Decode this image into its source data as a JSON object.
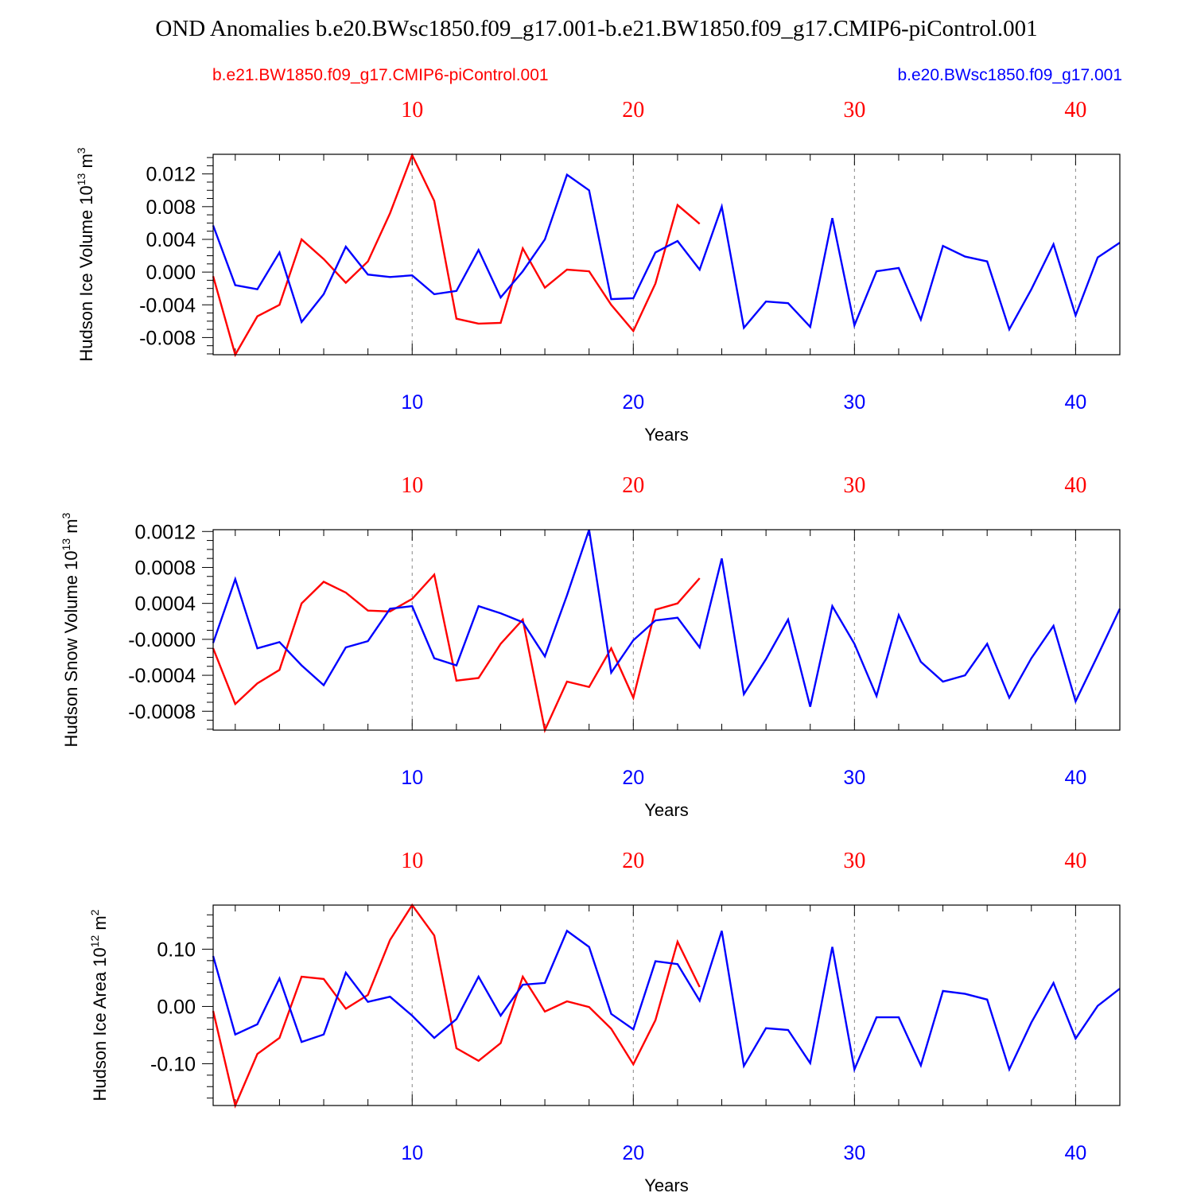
{
  "title": "OND Anomalies b.e20.BWsc1850.f09_g17.001-b.e21.BW1850.f09_g17.CMIP6-piControl.001",
  "colors": {
    "red": "#ff0000",
    "blue": "#0000ff",
    "axis": "#000000",
    "grid": "#888888"
  },
  "legend": {
    "red_label": "b.e21.BW1850.f09_g17.CMIP6-piControl.001",
    "blue_label": "b.e20.BWsc1850.f09_g17.001"
  },
  "chart_data": [
    {
      "type": "line",
      "xlabel": "Years",
      "ylabel": "Hudson Ice Volume 10",
      "ylabel_exp": "13",
      "ylabel_unit": " m",
      "ylabel_unit_exp": "3",
      "xlim": [
        1,
        42
      ],
      "ylim": [
        -0.0101,
        0.0144
      ],
      "yticks": [
        -0.008,
        -0.004,
        0.0,
        0.004,
        0.008,
        0.012
      ],
      "ytick_labels": [
        "-0.008",
        "-0.004",
        "0.000",
        "0.004",
        "0.008",
        "0.012"
      ],
      "yminor_step": 0.001,
      "xticks": [
        10,
        20,
        30,
        40
      ],
      "xtick_labels": [
        "10",
        "20",
        "30",
        "40"
      ],
      "series": [
        {
          "name": "b.e21.BW1850.f09_g17.CMIP6-piControl.001",
          "color": "red",
          "x": [
            1,
            2,
            3,
            4,
            5,
            6,
            7,
            8,
            9,
            10,
            11,
            12,
            13,
            14,
            15,
            16,
            17,
            18,
            19,
            20,
            21,
            22,
            23
          ],
          "values": [
            -0.0005,
            -0.0101,
            -0.0054,
            -0.004,
            0.004,
            0.0016,
            -0.0013,
            0.0013,
            0.0072,
            0.0143,
            0.0087,
            -0.0057,
            -0.0063,
            -0.0062,
            0.0029,
            -0.0019,
            0.0003,
            0.0001,
            -0.004,
            -0.0072,
            -0.0014,
            0.0082,
            0.0059
          ]
        },
        {
          "name": "b.e20.BWsc1850.f09_g17.001",
          "color": "blue",
          "x": [
            1,
            2,
            3,
            4,
            5,
            6,
            7,
            8,
            9,
            10,
            11,
            12,
            13,
            14,
            15,
            16,
            17,
            18,
            19,
            20,
            21,
            22,
            23,
            24,
            25,
            26,
            27,
            28,
            29,
            30,
            31,
            32,
            33,
            34,
            35,
            36,
            37,
            38,
            39,
            40,
            41,
            42
          ],
          "values": [
            0.0057,
            -0.0016,
            -0.0021,
            0.0024,
            -0.0061,
            -0.0027,
            0.0031,
            -0.0003,
            -0.0006,
            -0.0004,
            -0.0027,
            -0.0023,
            0.0027,
            -0.0031,
            0.0001,
            0.004,
            0.0119,
            0.01,
            -0.0033,
            -0.0032,
            0.0024,
            0.0038,
            0.0003,
            0.008,
            -0.0068,
            -0.0036,
            -0.0038,
            -0.0067,
            0.0066,
            -0.0065,
            0.0001,
            0.0005,
            -0.0058,
            0.0032,
            0.0019,
            0.0013,
            -0.007,
            -0.0021,
            0.0034,
            -0.0053,
            0.0018,
            0.0036
          ]
        }
      ]
    },
    {
      "type": "line",
      "xlabel": "Years",
      "ylabel": "Hudson Snow Volume 10",
      "ylabel_exp": "13",
      "ylabel_unit": " m",
      "ylabel_unit_exp": "3",
      "xlim": [
        1,
        42
      ],
      "ylim": [
        -0.00101,
        0.00122
      ],
      "yticks": [
        -0.0008,
        -0.0004,
        0.0,
        0.0004,
        0.0008,
        0.0012
      ],
      "ytick_labels": [
        "-0.0008",
        "-0.0004",
        "-0.0000",
        "0.0004",
        "0.0008",
        "0.0012"
      ],
      "yminor_step": 0.0001,
      "xticks": [
        10,
        20,
        30,
        40
      ],
      "xtick_labels": [
        "10",
        "20",
        "30",
        "40"
      ],
      "series": [
        {
          "name": "b.e21.BW1850.f09_g17.CMIP6-piControl.001",
          "color": "red",
          "x": [
            1,
            2,
            3,
            4,
            5,
            6,
            7,
            8,
            9,
            10,
            11,
            12,
            13,
            14,
            15,
            16,
            17,
            18,
            19,
            20,
            21,
            22,
            23
          ],
          "values": [
            -0.0001,
            -0.00072,
            -0.00049,
            -0.00034,
            0.0004,
            0.00064,
            0.00052,
            0.00032,
            0.00031,
            0.00045,
            0.00072,
            -0.00046,
            -0.00043,
            -5e-05,
            0.00022,
            -0.00101,
            -0.00047,
            -0.00053,
            -0.0001,
            -0.00065,
            0.00033,
            0.0004,
            0.00068
          ]
        },
        {
          "name": "b.e20.BWsc1850.f09_g17.001",
          "color": "blue",
          "x": [
            1,
            2,
            3,
            4,
            5,
            6,
            7,
            8,
            9,
            10,
            11,
            12,
            13,
            14,
            15,
            16,
            17,
            18,
            19,
            20,
            21,
            22,
            23,
            24,
            25,
            26,
            27,
            28,
            29,
            30,
            31,
            32,
            33,
            34,
            35,
            36,
            37,
            38,
            39,
            40,
            41,
            42
          ],
          "values": [
            -4e-05,
            0.00067,
            -0.0001,
            -3e-05,
            -0.00029,
            -0.00051,
            -9e-05,
            -2e-05,
            0.00034,
            0.00037,
            -0.00021,
            -0.00029,
            0.00037,
            0.00029,
            0.00019,
            -0.00019,
            0.00049,
            0.00122,
            -0.00037,
            -1e-05,
            0.00021,
            0.00024,
            -9e-05,
            0.0009,
            -0.00061,
            -0.00022,
            0.00022,
            -0.00075,
            0.00037,
            -5e-05,
            -0.00063,
            0.00027,
            -0.00025,
            -0.00047,
            -0.0004,
            -5e-05,
            -0.00065,
            -0.00021,
            0.00015,
            -0.00069,
            -0.00018,
            0.00034
          ]
        }
      ]
    },
    {
      "type": "line",
      "xlabel": "Years",
      "ylabel": "Hudson Ice Area 10",
      "ylabel_exp": "12",
      "ylabel_unit": " m",
      "ylabel_unit_exp": "2",
      "xlim": [
        1,
        42
      ],
      "ylim": [
        -0.173,
        0.177
      ],
      "yticks": [
        -0.1,
        0.0,
        0.1
      ],
      "ytick_labels": [
        "-0.10",
        "0.00",
        "0.10"
      ],
      "yminor_step": 0.02,
      "xticks": [
        10,
        20,
        30,
        40
      ],
      "xtick_labels": [
        "10",
        "20",
        "30",
        "40"
      ],
      "series": [
        {
          "name": "b.e21.BW1850.f09_g17.CMIP6-piControl.001",
          "color": "red",
          "x": [
            1,
            2,
            3,
            4,
            5,
            6,
            7,
            8,
            9,
            10,
            11,
            12,
            13,
            14,
            15,
            16,
            17,
            18,
            19,
            20,
            21,
            22,
            23
          ],
          "values": [
            -0.008,
            -0.173,
            -0.083,
            -0.055,
            0.052,
            0.048,
            -0.004,
            0.02,
            0.116,
            0.177,
            0.124,
            -0.073,
            -0.095,
            -0.064,
            0.052,
            -0.009,
            0.009,
            -0.001,
            -0.039,
            -0.101,
            -0.024,
            0.113,
            0.034
          ]
        },
        {
          "name": "b.e20.BWsc1850.f09_g17.001",
          "color": "blue",
          "x": [
            1,
            2,
            3,
            4,
            5,
            6,
            7,
            8,
            9,
            10,
            11,
            12,
            13,
            14,
            15,
            16,
            17,
            18,
            19,
            20,
            21,
            22,
            23,
            24,
            25,
            26,
            27,
            28,
            29,
            30,
            31,
            32,
            33,
            34,
            35,
            36,
            37,
            38,
            39,
            40,
            41,
            42
          ],
          "values": [
            0.088,
            -0.049,
            -0.031,
            0.049,
            -0.062,
            -0.049,
            0.059,
            0.008,
            0.017,
            -0.016,
            -0.055,
            -0.022,
            0.052,
            -0.016,
            0.038,
            0.041,
            0.132,
            0.104,
            -0.013,
            -0.04,
            0.079,
            0.074,
            0.01,
            0.132,
            -0.104,
            -0.038,
            -0.041,
            -0.099,
            0.104,
            -0.11,
            -0.019,
            -0.019,
            -0.103,
            0.027,
            0.022,
            0.012,
            -0.11,
            -0.028,
            0.041,
            -0.056,
            0.001,
            0.031
          ]
        }
      ]
    }
  ]
}
